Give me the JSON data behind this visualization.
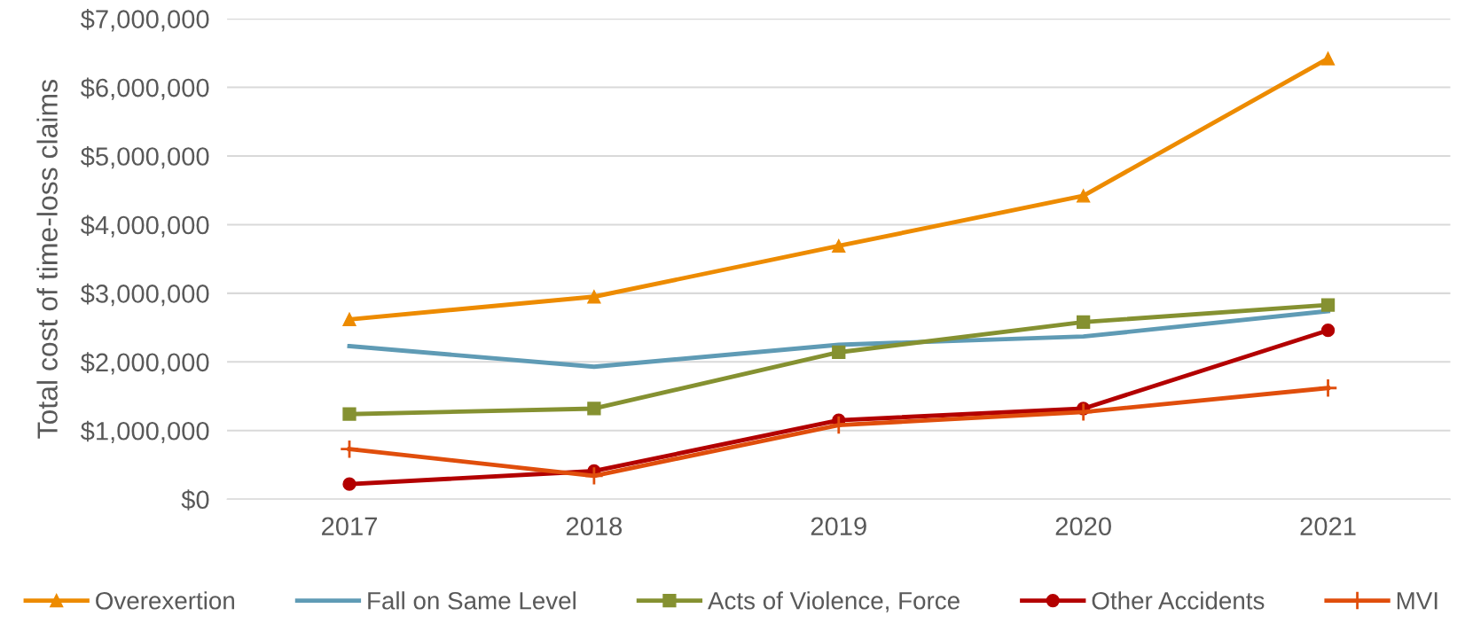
{
  "chart_data": {
    "type": "line",
    "ylabel": "Total cost of time-loss claims",
    "categories": [
      "2017",
      "2018",
      "2019",
      "2020",
      "2021"
    ],
    "series": [
      {
        "name": "Overexertion",
        "color": "#ed8b00",
        "marker": "triangle",
        "values": [
          2620000,
          2950000,
          3690000,
          4420000,
          6420000
        ]
      },
      {
        "name": "Fall on Same Level",
        "color": "#5f9bb5",
        "marker": "none",
        "values": [
          2230000,
          1930000,
          2250000,
          2370000,
          2740000
        ]
      },
      {
        "name": "Acts of Violence, Force",
        "color": "#859131",
        "marker": "square",
        "values": [
          1240000,
          1320000,
          2140000,
          2580000,
          2830000
        ]
      },
      {
        "name": "Other Accidents",
        "color": "#b30000",
        "marker": "circle",
        "values": [
          220000,
          410000,
          1150000,
          1320000,
          2460000
        ]
      },
      {
        "name": "MVI",
        "color": "#e04e0c",
        "marker": "cross",
        "values": [
          730000,
          340000,
          1080000,
          1270000,
          1620000
        ]
      }
    ],
    "ylim": [
      0,
      7000000
    ],
    "yticks": [
      {
        "value": 0,
        "label": "$0"
      },
      {
        "value": 1000000,
        "label": "$1,000,000"
      },
      {
        "value": 2000000,
        "label": "$2,000,000"
      },
      {
        "value": 3000000,
        "label": "$3,000,000"
      },
      {
        "value": 4000000,
        "label": "$4,000,000"
      },
      {
        "value": 5000000,
        "label": "$5,000,000"
      },
      {
        "value": 6000000,
        "label": "$6,000,000"
      },
      {
        "value": 7000000,
        "label": "$7,000,000"
      }
    ],
    "grid": "y",
    "legend": "bottom",
    "line_style": "solid"
  }
}
